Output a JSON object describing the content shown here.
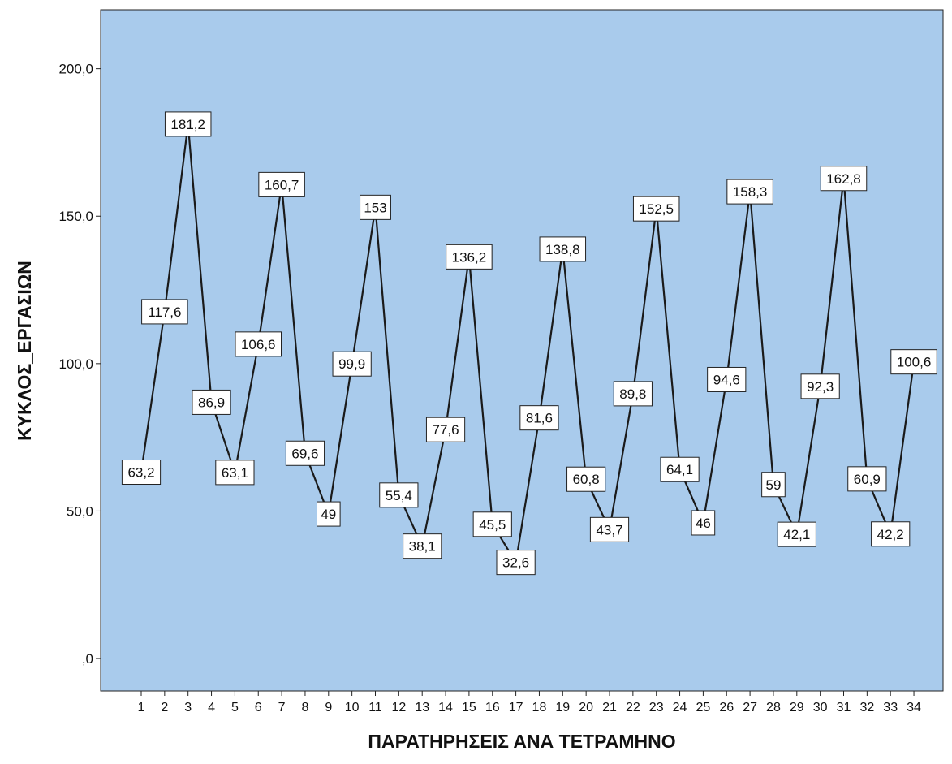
{
  "chart_data": {
    "type": "line",
    "title": "",
    "xlabel": "ΠΑΡΑΤΗΡΗΣΕΙΣ ΑΝΑ ΤΕΤΡΑΜΗΝΟ",
    "ylabel": "ΚΥΚΛΟΣ_ΕΡΓΑΣΙΩΝ",
    "x": [
      1,
      2,
      3,
      4,
      5,
      6,
      7,
      8,
      9,
      10,
      11,
      12,
      13,
      14,
      15,
      16,
      17,
      18,
      19,
      20,
      21,
      22,
      23,
      24,
      25,
      26,
      27,
      28,
      29,
      30,
      31,
      32,
      33,
      34
    ],
    "values": [
      63.2,
      117.6,
      181.2,
      86.9,
      63.1,
      106.6,
      160.7,
      69.6,
      49,
      99.9,
      153,
      55.4,
      38.1,
      77.6,
      136.2,
      45.5,
      32.6,
      81.6,
      138.8,
      60.8,
      43.7,
      89.8,
      152.5,
      64.1,
      46,
      94.6,
      158.3,
      59,
      42.1,
      92.3,
      162.8,
      60.9,
      42.2,
      100.6
    ],
    "data_labels": [
      "63,2",
      "117,6",
      "181,2",
      "86,9",
      "63,1",
      "106,6",
      "160,7",
      "69,6",
      "49",
      "99,9",
      "153",
      "55,4",
      "38,1",
      "77,6",
      "136,2",
      "45,5",
      "32,6",
      "81,6",
      "138,8",
      "60,8",
      "43,7",
      "89,8",
      "152,5",
      "64,1",
      "46",
      "94,6",
      "158,3",
      "59",
      "42,1",
      "92,3",
      "162,8",
      "60,9",
      "42,2",
      "100,6"
    ],
    "y_ticks": [
      0,
      50,
      100,
      150,
      200
    ],
    "y_tick_labels": [
      ",0",
      "50,0",
      "100,0",
      "150,0",
      "200,0"
    ],
    "ylim": [
      -11,
      220
    ],
    "grid": false,
    "colors": {
      "plot_background": "#a9cbec",
      "line": "#1a1a1a",
      "label_box": "#ffffff"
    }
  }
}
